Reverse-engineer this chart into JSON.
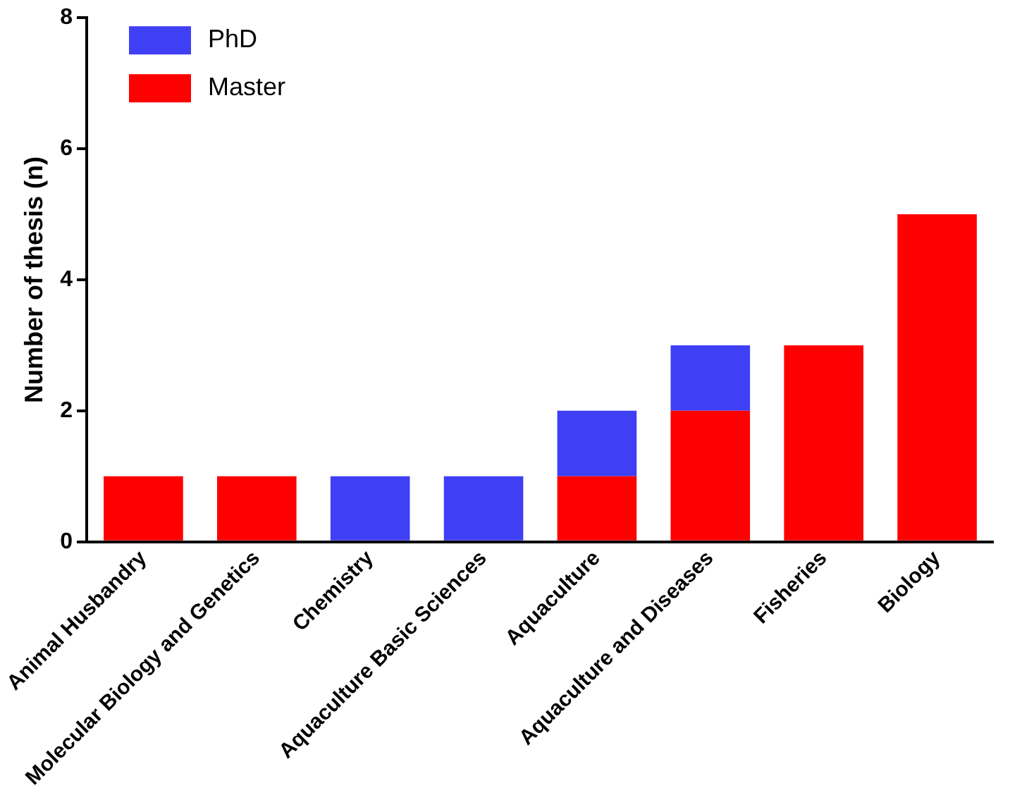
{
  "chart_data": {
    "type": "bar",
    "stacked": true,
    "ylabel": "Number of thesis (n)",
    "categories": [
      "Animal Husbandry",
      "Molecular Biology and Genetics",
      "Chemistry",
      "Aquaculture Basic Sciences",
      "Aquaculture",
      "Aquaculture and Diseases",
      "Fisheries",
      "Biology"
    ],
    "series": [
      {
        "name": "Master",
        "color": "#ff0000",
        "values": [
          1,
          1,
          0,
          0,
          1,
          2,
          3,
          5
        ]
      },
      {
        "name": "PhD",
        "color": "#3f3ff5",
        "values": [
          0,
          0,
          1,
          1,
          1,
          1,
          0,
          0
        ]
      }
    ],
    "ylim": [
      0,
      8
    ],
    "yticks": [
      0,
      2,
      4,
      6,
      8
    ],
    "grid": false,
    "legend": "top left"
  }
}
